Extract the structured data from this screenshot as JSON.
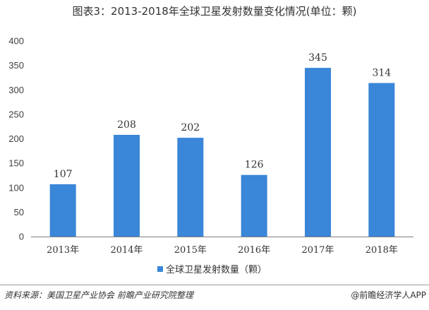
{
  "title": "图表3：2013-2018年全球卫星发射数量变化情况(单位：颗)",
  "source": "资料来源：美国卫星产业协会 前瞻产业研究院整理",
  "brand": "@前瞻经济学人APP",
  "colors": {
    "bar": "#3a86d8",
    "axis": "#7f7f7f",
    "text": "#333333"
  },
  "chart_data": {
    "type": "bar",
    "categories": [
      "2013年",
      "2014年",
      "2015年",
      "2016年",
      "2017年",
      "2018年"
    ],
    "series": [
      {
        "name": "全球卫星发射数量（颗）",
        "values": [
          107,
          208,
          202,
          126,
          345,
          314
        ]
      }
    ],
    "ylim": [
      0,
      400
    ],
    "yticks": [
      0,
      50,
      100,
      150,
      200,
      250,
      300,
      350,
      400
    ],
    "grid": false,
    "legend": "bottom-center",
    "data_labels": true
  }
}
